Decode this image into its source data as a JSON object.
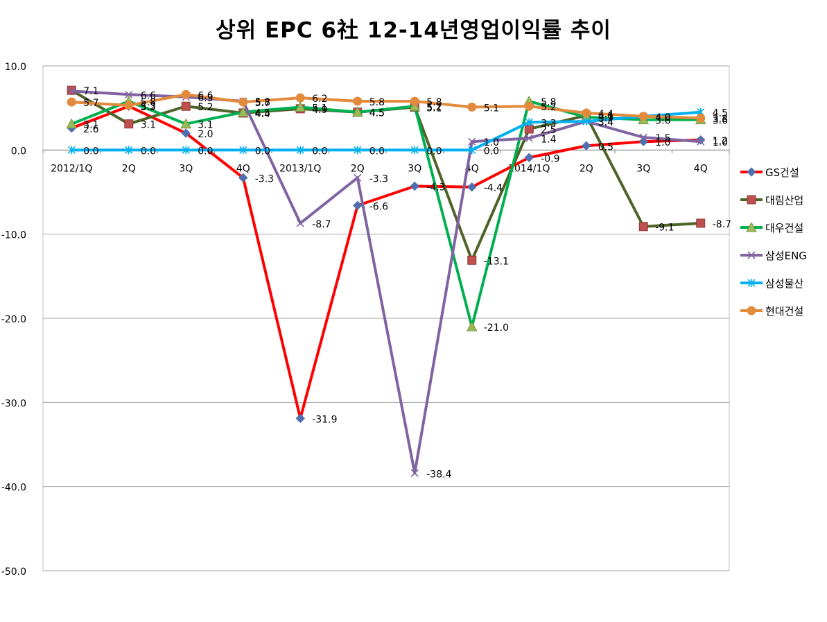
{
  "chart_data": {
    "type": "line",
    "title": "상위 EPC 6社 12-14년영업이익률 추이",
    "categories": [
      "2012/1Q",
      "2Q",
      "3Q",
      "4Q",
      "2013/1Q",
      "2Q",
      "3Q",
      "4Q",
      "2014/1Q",
      "2Q",
      "3Q",
      "4Q"
    ],
    "ylim": [
      -50,
      10
    ],
    "yticks": [
      10,
      0,
      -10,
      -20,
      -30,
      -40,
      -50
    ],
    "ytick_labels": [
      "10.0",
      "0.0",
      "-10.0",
      "-20.0",
      "-30.0",
      "-40.0",
      "-50.0"
    ],
    "grid": true,
    "legend_position": "right",
    "series": [
      {
        "name": "GS건설",
        "color": "#ff0000",
        "marker": "diamond",
        "values": [
          2.6,
          5.2,
          2.0,
          -3.3,
          -31.9,
          -6.6,
          -4.3,
          -4.4,
          -0.9,
          0.5,
          1.0,
          1.2
        ],
        "labels": [
          "2.6",
          "5.2",
          "2.0",
          "-3.3",
          "-31.9",
          "-6.6",
          "-4.3",
          "-4.4",
          "-0.9",
          "0.5",
          "1.0",
          "1.2"
        ]
      },
      {
        "name": "대림산업",
        "color": "#4f6228",
        "marker": "square",
        "values": [
          7.1,
          3.1,
          5.2,
          4.4,
          4.9,
          4.5,
          5.1,
          -13.1,
          2.5,
          4.1,
          -9.1,
          -8.7
        ],
        "labels": [
          "7.1",
          "3.1",
          "5.2",
          "4.4",
          "4.9",
          "4.5",
          "5.1",
          "-13.1",
          "2.5",
          "4.1",
          "-9.1",
          "-8.7"
        ]
      },
      {
        "name": "대우건설",
        "color": "#00b050",
        "marker": "triangle",
        "values": [
          3.1,
          5.8,
          3.1,
          4.5,
          5.1,
          4.5,
          5.2,
          -21.0,
          5.8,
          3.9,
          3.6,
          3.6
        ],
        "labels": [
          "3.1",
          "5.8",
          "3.1",
          "4.5",
          "5.1",
          "4.5",
          "5.2",
          "-21.0",
          "5.8",
          "3.9",
          "3.6",
          "3.6"
        ]
      },
      {
        "name": "삼성ENG",
        "color": "#8064a2",
        "marker": "x",
        "values": [
          7.0,
          6.6,
          6.3,
          5.8,
          -8.7,
          -3.3,
          -38.4,
          1.0,
          1.4,
          3.4,
          1.5,
          1.0
        ],
        "labels": [
          "",
          "6.6",
          "6.3",
          "5.8",
          "-8.7",
          "-3.3",
          "-38.4",
          "1.0",
          "1.4",
          "3.4",
          "1.5",
          "1.0"
        ]
      },
      {
        "name": "삼성물산",
        "color": "#00b0f0",
        "marker": "star",
        "values": [
          0.0,
          0.0,
          0.0,
          0.0,
          0.0,
          0.0,
          0.0,
          0.0,
          3.3,
          3.4,
          4.0,
          4.5
        ],
        "labels": [
          "0.0",
          "0.0",
          "0.0",
          "0.0",
          "0.0",
          "0.0",
          "0.0",
          "0.0",
          "3.3",
          "3.4",
          "4.0",
          "4.5"
        ]
      },
      {
        "name": "현대건설",
        "color": "#e48a3c",
        "marker": "circle",
        "values": [
          5.7,
          5.3,
          6.6,
          5.7,
          6.2,
          5.8,
          5.8,
          5.1,
          5.2,
          4.4,
          4.0,
          3.8
        ],
        "labels": [
          "5.7",
          "5.3",
          "6.6",
          "5.7",
          "6.2",
          "5.8",
          "5.8",
          "5.1",
          "5.2",
          "4.4",
          "4.0",
          "3.8"
        ]
      }
    ]
  }
}
